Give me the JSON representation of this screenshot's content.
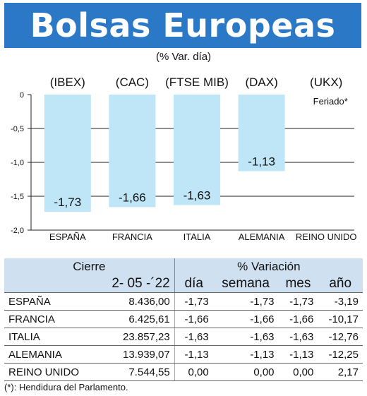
{
  "banner": {
    "title": "Bolsas Europeas"
  },
  "chart_data": {
    "type": "bar",
    "subtitle": "(% Var. día)",
    "index_labels": [
      "(IBEX)",
      "(CAC)",
      "(FTSE MIB)",
      "(DAX)",
      "(UKX)"
    ],
    "categories": [
      "ESPAÑA",
      "FRANCIA",
      "ITALIA",
      "ALEMANIA",
      "REINO UNIDO"
    ],
    "values": [
      -1.73,
      -1.66,
      -1.63,
      -1.13,
      null
    ],
    "value_labels": [
      "-1,73",
      "-1,66",
      "-1,63",
      "-1,13",
      ""
    ],
    "note_label": "Feriado*",
    "yticks": [
      0,
      -0.5,
      -1,
      -1.5,
      -2
    ],
    "ytick_labels": [
      "0",
      "-0,5",
      "-1,0",
      "-1,5",
      "-2,0"
    ],
    "ylim": [
      -2,
      0
    ],
    "bar_color": "#bfe6f7",
    "grid": true
  },
  "table": {
    "header_cierre": "Cierre",
    "header_variacion": "% Variación",
    "header_date": "2- 05 -´22",
    "sub_headers": [
      "día",
      "semana",
      "mes",
      "año"
    ],
    "rows": [
      {
        "country": "ESPAÑA",
        "close": "8.436,00",
        "dia": "-1,73",
        "semana": "-1,73",
        "mes": "-1,73",
        "anio": "-3,19"
      },
      {
        "country": "FRANCIA",
        "close": "6.425,61",
        "dia": "-1,66",
        "semana": "-1,66",
        "mes": "-1,66",
        "anio": "-10,17"
      },
      {
        "country": "ITALIA",
        "close": "23.857,23",
        "dia": "-1,63",
        "semana": "-1,63",
        "mes": "-1,63",
        "anio": "-12,76"
      },
      {
        "country": "ALEMANIA",
        "close": "13.939,07",
        "dia": "-1,13",
        "semana": "-1,13",
        "mes": "-1,13",
        "anio": "-12,25"
      },
      {
        "country": "REINO UNIDO",
        "close": "7.544,55",
        "dia": "0,00",
        "semana": "0,00",
        "mes": "0,00",
        "anio": "2,17"
      }
    ],
    "header_bg": "#cfe0f1"
  },
  "footnote": "(*): Hendidura del Parlamento."
}
